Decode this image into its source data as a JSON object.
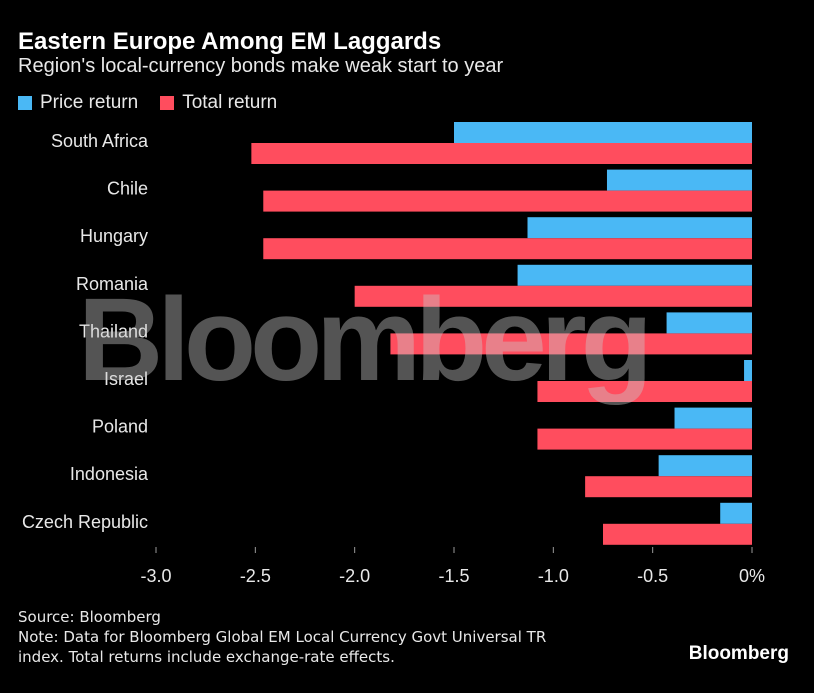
{
  "header": {
    "title": "Eastern Europe Among EM Laggards",
    "subtitle": "Region's local-currency bonds make weak start to year"
  },
  "legend": {
    "price_label": "Price return",
    "total_label": "Total return"
  },
  "colors": {
    "price": "#4ab8f5",
    "total": "#ff4d5e",
    "background": "#000000"
  },
  "chart_data": {
    "type": "bar",
    "orientation": "horizontal",
    "title": "Eastern Europe Among EM Laggards",
    "subtitle": "Region's local-currency bonds make weak start to year",
    "categories": [
      "South Africa",
      "Chile",
      "Hungary",
      "Romania",
      "Thailand",
      "Israel",
      "Poland",
      "Indonesia",
      "Czech Republic"
    ],
    "series": [
      {
        "name": "Price return",
        "values": [
          -1.5,
          -0.73,
          -1.13,
          -1.18,
          -0.43,
          -0.04,
          -0.39,
          -0.47,
          -0.16
        ]
      },
      {
        "name": "Total return",
        "values": [
          -2.52,
          -2.46,
          -2.46,
          -2.0,
          -1.82,
          -1.08,
          -1.08,
          -0.84,
          -0.75
        ]
      }
    ],
    "xlim": [
      -3.0,
      0
    ],
    "xticks": [
      -3.0,
      -2.5,
      -2.0,
      -1.5,
      -1.0,
      -0.5,
      0
    ],
    "xtick_labels": [
      "-3.0",
      "-2.5",
      "-2.0",
      "-1.5",
      "-1.0",
      "-0.5",
      "0%"
    ],
    "xlabel": "",
    "ylabel": "",
    "grid": false,
    "legend_position": "top-left"
  },
  "footer": {
    "source": "Source: Bloomberg",
    "note_line1": "Note: Data for Bloomberg Global EM Local Currency Govt Universal TR",
    "note_line2": "index. Total returns include exchange-rate effects."
  },
  "brand": "Bloomberg",
  "watermark": "Bloomberg"
}
